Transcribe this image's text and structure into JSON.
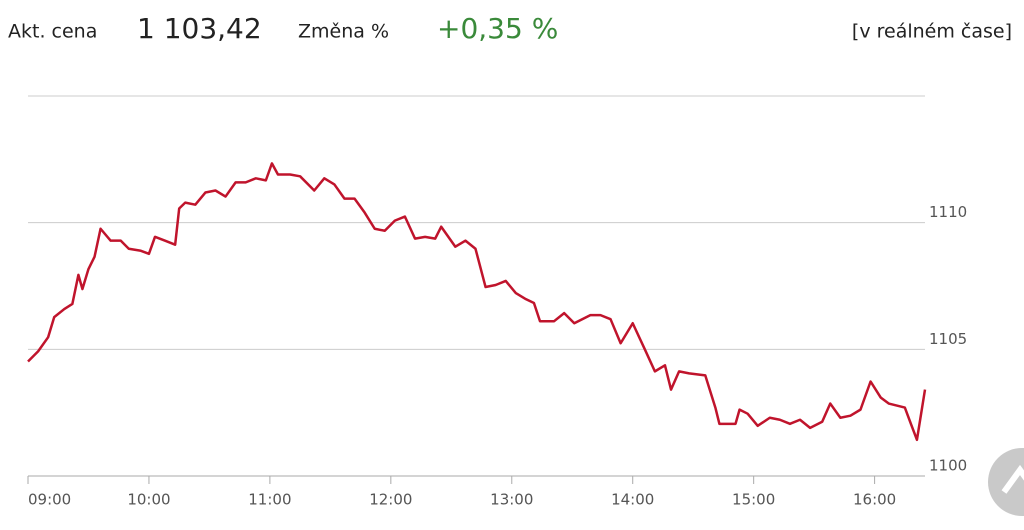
{
  "header": {
    "price_label": "Akt. cena",
    "price": "1 103,42",
    "change_label": "Změna %",
    "change": "+0,35 %",
    "realtime": "[v reálném čase]"
  },
  "chart_data": {
    "type": "line",
    "x": [
      540,
      545,
      550,
      553,
      558,
      562,
      565,
      567,
      570,
      573,
      576,
      581,
      586,
      590,
      596,
      600,
      603,
      608,
      613,
      615,
      618,
      623,
      628,
      633,
      638,
      643,
      648,
      653,
      658,
      661,
      664,
      670,
      675,
      682,
      687,
      692,
      697,
      702,
      707,
      712,
      717,
      722,
      727,
      732,
      737,
      742,
      745,
      752,
      757,
      762,
      767,
      772,
      777,
      782,
      787,
      791,
      794,
      801,
      806,
      811,
      819,
      824,
      829,
      834,
      840,
      846,
      851,
      856,
      859,
      863,
      868,
      876,
      881,
      883,
      891,
      893,
      897,
      902,
      908,
      913,
      918,
      923,
      928,
      934,
      938,
      943,
      948,
      953,
      958,
      963,
      967,
      975,
      978,
      981,
      985
    ],
    "series": [
      {
        "color": "#c0142c",
        "values": [
          1104.52,
          1104.92,
          1105.48,
          1106.27,
          1106.59,
          1106.79,
          1107.94,
          1107.38,
          1108.17,
          1108.65,
          1109.76,
          1109.29,
          1109.29,
          1108.97,
          1108.89,
          1108.77,
          1109.44,
          1109.29,
          1109.13,
          1110.56,
          1110.79,
          1110.71,
          1111.19,
          1111.27,
          1111.03,
          1111.59,
          1111.59,
          1111.75,
          1111.67,
          1112.34,
          1111.9,
          1111.9,
          1111.83,
          1111.27,
          1111.75,
          1111.51,
          1110.95,
          1110.95,
          1110.4,
          1109.76,
          1109.68,
          1110.08,
          1110.24,
          1109.37,
          1109.44,
          1109.37,
          1109.84,
          1109.05,
          1109.29,
          1108.97,
          1107.46,
          1107.54,
          1107.7,
          1107.22,
          1106.98,
          1106.83,
          1106.11,
          1106.11,
          1106.43,
          1106.03,
          1106.35,
          1106.35,
          1106.19,
          1105.24,
          1106.03,
          1105.0,
          1104.13,
          1104.37,
          1103.41,
          1104.13,
          1104.05,
          1103.97,
          1102.7,
          1102.06,
          1102.06,
          1102.62,
          1102.46,
          1101.98,
          1102.3,
          1102.22,
          1102.06,
          1102.22,
          1101.9,
          1102.14,
          1102.86,
          1102.3,
          1102.38,
          1102.62,
          1103.73,
          1103.1,
          1102.86,
          1102.7,
          1102.06,
          1101.43,
          1103.41
        ]
      }
    ],
    "xlim": [
      540,
      985
    ],
    "xticks": [
      {
        "value": 540,
        "label": "09:00"
      },
      {
        "value": 600,
        "label": "10:00"
      },
      {
        "value": 660,
        "label": "11:00"
      },
      {
        "value": 720,
        "label": "12:00"
      },
      {
        "value": 780,
        "label": "13:00"
      },
      {
        "value": 840,
        "label": "14:00"
      },
      {
        "value": 900,
        "label": "15:00"
      },
      {
        "value": 960,
        "label": "16:00"
      }
    ],
    "ylim": [
      1100,
      1115
    ],
    "yticks": [
      1100,
      1105,
      1110
    ],
    "grid": true
  }
}
